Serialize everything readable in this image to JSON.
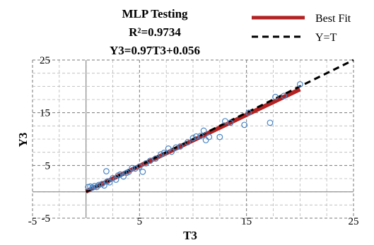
{
  "chart_data": {
    "type": "scatter",
    "title_lines": [
      "MLP Testing",
      "R²=0.9734",
      "Y3=0.97T3+0.056"
    ],
    "xlabel": "T3",
    "ylabel": "Y3",
    "xlim": [
      -5,
      25
    ],
    "ylim": [
      -5,
      25
    ],
    "x_ticks": [
      -5,
      5,
      15,
      25
    ],
    "y_ticks": [
      -5,
      5,
      15,
      25
    ],
    "x_tick_labels": [
      "-5",
      "5",
      "15",
      "25"
    ],
    "y_tick_labels": [
      "-5",
      "5",
      "15",
      "25"
    ],
    "grid": true,
    "legend_position": "top-right",
    "series": [
      {
        "name": "Best Fit",
        "kind": "line",
        "color": "#b22222",
        "slope": 0.97,
        "intercept": 0.056,
        "x_range": [
          0,
          20
        ]
      },
      {
        "name": "Y=T",
        "kind": "dashed-line",
        "color": "#000000",
        "slope": 1,
        "intercept": 0,
        "x_range": [
          0,
          25
        ]
      },
      {
        "kind": "markers",
        "color": "#4a86c5",
        "points": [
          [
            0.2,
            0.9
          ],
          [
            0.4,
            1.0
          ],
          [
            0.6,
            0.8
          ],
          [
            0.8,
            1.1
          ],
          [
            1.0,
            0.9
          ],
          [
            1.2,
            1.3
          ],
          [
            1.5,
            1.5
          ],
          [
            1.7,
            1.2
          ],
          [
            2.0,
            2.0
          ],
          [
            1.9,
            3.9
          ],
          [
            2.2,
            1.8
          ],
          [
            2.5,
            2.6
          ],
          [
            2.8,
            2.3
          ],
          [
            3.0,
            3.1
          ],
          [
            3.2,
            3.3
          ],
          [
            3.5,
            2.9
          ],
          [
            3.8,
            3.6
          ],
          [
            4.0,
            3.8
          ],
          [
            4.3,
            4.5
          ],
          [
            4.6,
            4.4
          ],
          [
            5.0,
            4.8
          ],
          [
            5.3,
            3.8
          ],
          [
            5.6,
            5.4
          ],
          [
            6.0,
            5.9
          ],
          [
            6.5,
            6.3
          ],
          [
            7.0,
            7.1
          ],
          [
            7.3,
            7.4
          ],
          [
            7.7,
            8.2
          ],
          [
            8.0,
            7.6
          ],
          [
            8.4,
            8.4
          ],
          [
            8.8,
            8.6
          ],
          [
            9.5,
            9.4
          ],
          [
            10.0,
            10.2
          ],
          [
            10.3,
            10.5
          ],
          [
            10.7,
            10.6
          ],
          [
            11.0,
            11.6
          ],
          [
            11.2,
            9.8
          ],
          [
            11.5,
            10.4
          ],
          [
            12.5,
            10.4
          ],
          [
            13.0,
            13.4
          ],
          [
            13.5,
            13.1
          ],
          [
            14.8,
            12.7
          ],
          [
            15.2,
            15.0
          ],
          [
            17.2,
            13.1
          ],
          [
            17.7,
            18.0
          ],
          [
            18.5,
            18.2
          ],
          [
            20.0,
            20.4
          ]
        ]
      }
    ]
  }
}
